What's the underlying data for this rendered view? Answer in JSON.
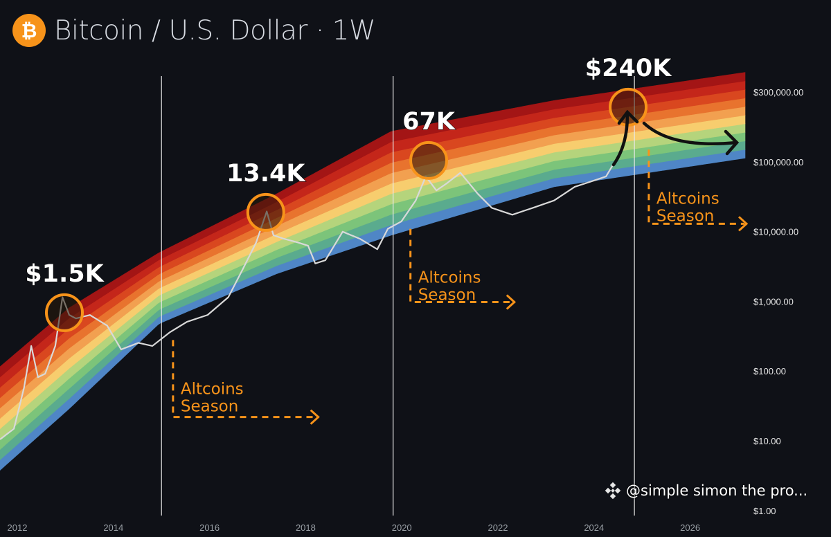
{
  "header": {
    "title": "Bitcoin / U.S. Dollar · 1W",
    "icon": "bitcoin-icon",
    "icon_glyph": "₿"
  },
  "watermark": {
    "text": "@simple simon the pro...",
    "icon": "binance-icon"
  },
  "chart_data": {
    "type": "line",
    "title": "Bitcoin / U.S. Dollar · 1W",
    "scale": "log",
    "x_ticks": [
      "2012",
      "2014",
      "2016",
      "2018",
      "2020",
      "2022",
      "2024",
      "2026"
    ],
    "x_tick_values": [
      2012,
      2014,
      2016,
      2018,
      2020,
      2022,
      2024,
      2026
    ],
    "y_ticks": [
      "$300,000.00",
      "$100,000.00",
      "$10,000.00",
      "$1,000.00",
      "$100.00",
      "$10.00",
      "$1.00"
    ],
    "price_series": {
      "name": "BTC/USD",
      "color": "#d9d9d9",
      "points": [
        [
          2011.64,
          10.5
        ],
        [
          2011.93,
          15
        ],
        [
          2012.14,
          58
        ],
        [
          2012.29,
          230
        ],
        [
          2012.43,
          82
        ],
        [
          2012.58,
          92
        ],
        [
          2012.79,
          230
        ],
        [
          2012.94,
          1150
        ],
        [
          2013.08,
          640
        ],
        [
          2013.22,
          570
        ],
        [
          2013.51,
          640
        ],
        [
          2013.87,
          450
        ],
        [
          2014.16,
          205
        ],
        [
          2014.52,
          255
        ],
        [
          2014.81,
          230
        ],
        [
          2015.17,
          360
        ],
        [
          2015.53,
          510
        ],
        [
          2015.96,
          640
        ],
        [
          2016.39,
          1150
        ],
        [
          2016.68,
          2800
        ],
        [
          2016.97,
          7000
        ],
        [
          2017.19,
          19500
        ],
        [
          2017.33,
          8900
        ],
        [
          2017.55,
          7900
        ],
        [
          2017.84,
          7000
        ],
        [
          2018.05,
          6300
        ],
        [
          2018.2,
          3500
        ],
        [
          2018.41,
          3900
        ],
        [
          2018.77,
          10000
        ],
        [
          2019.13,
          7900
        ],
        [
          2019.49,
          5600
        ],
        [
          2019.71,
          11000
        ],
        [
          2019.99,
          14000
        ],
        [
          2020.29,
          28000
        ],
        [
          2020.5,
          62000
        ],
        [
          2020.72,
          39000
        ],
        [
          2020.93,
          49000
        ],
        [
          2021.22,
          70000
        ],
        [
          2021.58,
          35000
        ],
        [
          2021.87,
          22000
        ],
        [
          2022.3,
          17500
        ],
        [
          2022.73,
          22000
        ],
        [
          2023.17,
          28000
        ],
        [
          2023.6,
          44000
        ],
        [
          2024.03,
          55000
        ],
        [
          2024.25,
          62000
        ],
        [
          2024.43,
          100000
        ]
      ]
    },
    "rainbow": {
      "bottom": [
        [
          2011.64,
          3.8
        ],
        [
          2013.08,
          29
        ],
        [
          2014.95,
          480
        ],
        [
          2017.4,
          2500
        ],
        [
          2019.78,
          8900
        ],
        [
          2023.17,
          44000
        ],
        [
          2027.2,
          115000
        ]
      ],
      "top": [
        [
          2011.64,
          116
        ],
        [
          2013.08,
          810
        ],
        [
          2014.95,
          5000
        ],
        [
          2017.4,
          35000
        ],
        [
          2019.78,
          274000
        ],
        [
          2023.17,
          760000
        ],
        [
          2027.2,
          1950000
        ]
      ],
      "band_colors_bottom_to_top": [
        "#4f86c6",
        "#5aab8e",
        "#7cc47a",
        "#b5d47c",
        "#f7cd6e",
        "#f2a050",
        "#e8732e",
        "#d9471f",
        "#c4261a",
        "#a31515"
      ]
    },
    "cycle_lines": [
      2015.0,
      2019.82,
      2024.84
    ],
    "peaks": [
      {
        "label": "$1.5K",
        "year": 2012.98,
        "value": 690
      },
      {
        "label": "13.4K",
        "year": 2017.17,
        "value": 18900
      },
      {
        "label": "67K",
        "year": 2020.56,
        "value": 105000
      },
      {
        "label": "$240K",
        "year": 2024.71,
        "value": 610000
      }
    ],
    "annotations": [
      {
        "line1": "Altcoins",
        "line2": "Season",
        "year": 2015.24,
        "top_value": 280,
        "bottom_value": 22,
        "end_year": 2018.22
      },
      {
        "line1": "Altcoins",
        "line2": "Season",
        "year": 2020.18,
        "top_value": 11000,
        "bottom_value": 980,
        "end_year": 2022.3
      },
      {
        "line1": "Altcoins",
        "line2": "Season",
        "year": 2025.14,
        "top_value": 150000,
        "bottom_value": 13000,
        "end_year": 2027.13
      }
    ],
    "accent_color": "#f7931a"
  }
}
